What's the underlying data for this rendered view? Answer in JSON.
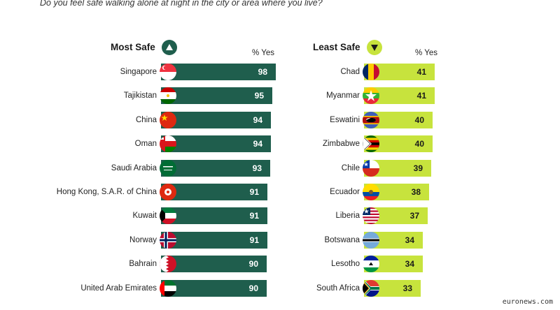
{
  "question": "Do you feel safe walking alone at night in the city or area where you live?",
  "source": "euronews.com",
  "colors": {
    "safe_bar": "#1f5e4d",
    "unsafe_bar": "#c7e33d"
  },
  "chart_data": [
    {
      "type": "bar",
      "orientation": "horizontal",
      "title": "Most Safe",
      "title_icon": "up-triangle-icon",
      "value_label": "% Yes",
      "categories": [
        "Singapore",
        "Tajikistan",
        "China",
        "Oman",
        "Saudi Arabia",
        "Hong Kong, S.A.R. of China",
        "Kuwait",
        "Norway",
        "Bahrain",
        "United Arab Emirates"
      ],
      "values": [
        98,
        95,
        94,
        94,
        93,
        91,
        91,
        91,
        90,
        90
      ],
      "flags": [
        "singapore-flag-icon",
        "tajikistan-flag-icon",
        "china-flag-icon",
        "oman-flag-icon",
        "saudi-arabia-flag-icon",
        "hong-kong-flag-icon",
        "kuwait-flag-icon",
        "norway-flag-icon",
        "bahrain-flag-icon",
        "uae-flag-icon"
      ]
    },
    {
      "type": "bar",
      "orientation": "horizontal",
      "title": "Least Safe",
      "title_icon": "down-triangle-icon",
      "value_label": "% Yes",
      "categories": [
        "Chad",
        "Myanmar",
        "Eswatini",
        "Zimbabwe",
        "Chile",
        "Ecuador",
        "Liberia",
        "Botswana",
        "Lesotho",
        "South Africa"
      ],
      "values": [
        41,
        41,
        40,
        40,
        39,
        38,
        37,
        34,
        34,
        33
      ],
      "flags": [
        "chad-flag-icon",
        "myanmar-flag-icon",
        "eswatini-flag-icon",
        "zimbabwe-flag-icon",
        "chile-flag-icon",
        "ecuador-flag-icon",
        "liberia-flag-icon",
        "botswana-flag-icon",
        "lesotho-flag-icon",
        "south-africa-flag-icon"
      ]
    }
  ]
}
